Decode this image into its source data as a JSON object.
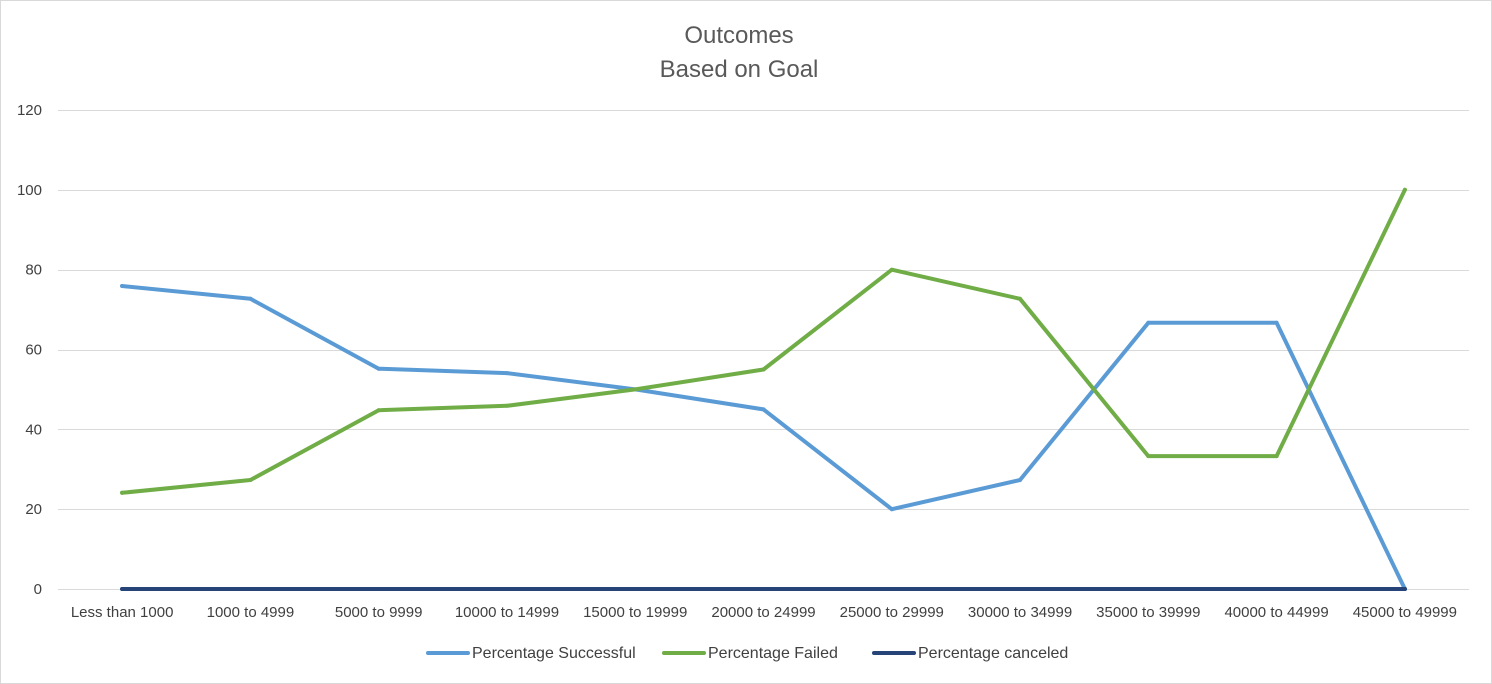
{
  "chart_data": {
    "type": "line",
    "title": "Outcomes",
    "subtitle": "Based on Goal",
    "xlabel": "",
    "ylabel": "",
    "ylim": [
      0,
      120
    ],
    "yticks": [
      0,
      20,
      40,
      60,
      80,
      100,
      120
    ],
    "grid": true,
    "legend_position": "bottom",
    "categories": [
      "Less than 1000",
      "1000 to 4999",
      "5000 to 9999",
      "10000 to 14999",
      "15000 to 19999",
      "20000 to 24999",
      "25000 to 29999",
      "30000 to 34999",
      "35000 to 39999",
      "40000 to 44999",
      "45000 to 49999"
    ],
    "series": [
      {
        "name": "Percentage Successful",
        "color": "#5b9bd5",
        "values": [
          75.9,
          72.7,
          55.2,
          54.1,
          50,
          45,
          20,
          27.3,
          66.7,
          66.7,
          0
        ]
      },
      {
        "name": "Percentage Failed",
        "color": "#70ad47",
        "values": [
          24.1,
          27.3,
          44.8,
          45.9,
          50,
          55,
          80,
          72.7,
          33.3,
          33.3,
          100
        ]
      },
      {
        "name": "Percentage canceled",
        "color": "#264478",
        "values": [
          0,
          0,
          0,
          0,
          0,
          0,
          0,
          0,
          0,
          0,
          0
        ]
      }
    ]
  }
}
